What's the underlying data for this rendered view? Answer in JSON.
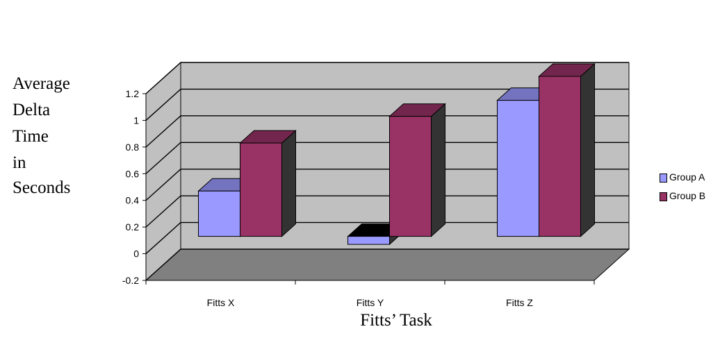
{
  "chart_data": {
    "type": "bar",
    "title": "",
    "xlabel": "Fitts’ Task",
    "ylabel": [
      "Average",
      "Delta",
      "Time",
      "in",
      "Seconds"
    ],
    "categories": [
      "Fitts X",
      "Fitts Y",
      "Fitts Z"
    ],
    "series": [
      {
        "name": "Group A",
        "values": [
          0.34,
          -0.06,
          1.02
        ],
        "color": "#9999ff"
      },
      {
        "name": "Group B",
        "values": [
          0.7,
          0.9,
          1.2
        ],
        "color": "#993366"
      }
    ],
    "yticks": [
      "-0.2",
      "0",
      "0.2",
      "0.4",
      "0.6",
      "0.8",
      "1",
      "1.2"
    ],
    "ylim": [
      -0.2,
      1.2
    ],
    "grid": true,
    "legend_position": "right",
    "style": "3d-clustered-column",
    "colors": {
      "wall": "#c0c0c0",
      "floor": "#808080",
      "bar_side": "#333333"
    }
  }
}
